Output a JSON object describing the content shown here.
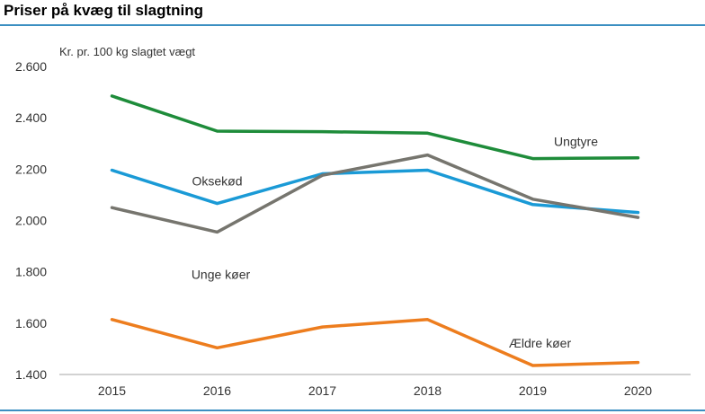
{
  "chart_data": {
    "type": "line",
    "title": "Priser på kvæg til slagtning",
    "ylabel": "Kr. pr. 100 kg slagtet vægt",
    "xlabel": "",
    "categories": [
      "2015",
      "2016",
      "2017",
      "2018",
      "2019",
      "2020"
    ],
    "ylim": [
      1400,
      2600
    ],
    "yticks": [
      1400,
      1600,
      1800,
      2000,
      2200,
      2400,
      2600
    ],
    "ytick_labels": [
      "1.400",
      "1.600",
      "1.800",
      "2.000",
      "2.200",
      "2.400",
      "2.600"
    ],
    "grid": false,
    "series": [
      {
        "name": "Ungtyre",
        "color": "#1e8c3a",
        "values": [
          2485,
          2348,
          2346,
          2340,
          2241,
          2244
        ]
      },
      {
        "name": "Oksekød",
        "color": "#1a9ad6",
        "values": [
          2196,
          2066,
          2182,
          2196,
          2062,
          2031
        ]
      },
      {
        "name": "Unge køer",
        "color": "#76756e",
        "values": [
          2050,
          1955,
          2176,
          2255,
          2083,
          2012
        ]
      },
      {
        "name": "Ældre køer",
        "color": "#ed7d1e",
        "values": [
          1614,
          1504,
          1585,
          1614,
          1435,
          1447
        ]
      }
    ]
  }
}
